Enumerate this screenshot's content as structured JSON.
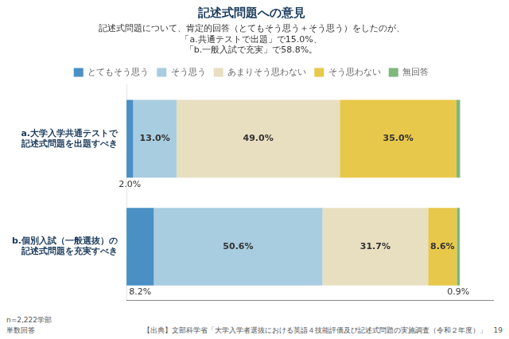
{
  "chart_data": {
    "type": "bar",
    "title": "記述式問題への意見",
    "subtitle": "記述式問題について、肯定的回答（とてもそう思う＋そう思う）をしたのが、\n「a.共通テストで出題」で15.0%、\n「b.一般入試で充実」で58.8%。",
    "orientation": "horizontal",
    "stacked": true,
    "data_labels": true,
    "legend": "top",
    "grid": false,
    "tick_labels": "y",
    "categories": [
      "a.大学入学共通テストで\n記述式問題を出題すべき",
      "b.個別入試（一般選抜）の\n記述式問題を充実すべき"
    ],
    "series": [
      {
        "name": "とてもそう思う",
        "color": "#4a90c4",
        "values": [
          2.0,
          8.2
        ],
        "value_labels": [
          "2.0%",
          "8.2%"
        ]
      },
      {
        "name": "そう思う",
        "color": "#a8cce0",
        "values": [
          13.0,
          50.6
        ],
        "value_labels": [
          "13.0%",
          "50.6%"
        ]
      },
      {
        "name": "あまりそう思わない",
        "color": "#e8dfc0",
        "values": [
          49.0,
          31.7
        ],
        "value_labels": [
          "49.0%",
          "31.7%"
        ]
      },
      {
        "name": "そう思わない",
        "color": "#e8c84a",
        "values": [
          35.0,
          8.6
        ],
        "value_labels": [
          "35.0%",
          "8.6%"
        ]
      },
      {
        "name": "無回答",
        "color": "#7db87d",
        "values": [
          1.1,
          0.9
        ],
        "value_labels": [
          null,
          "0.9%"
        ]
      }
    ],
    "xlim": [
      0,
      110
    ],
    "annotations": [
      "n=2,222学部\n単数回答",
      "【出典】文部科学省「大学入学者選抜における英語４技能評価及び記述式問題の実施調査（令和２年度）」　19"
    ]
  }
}
